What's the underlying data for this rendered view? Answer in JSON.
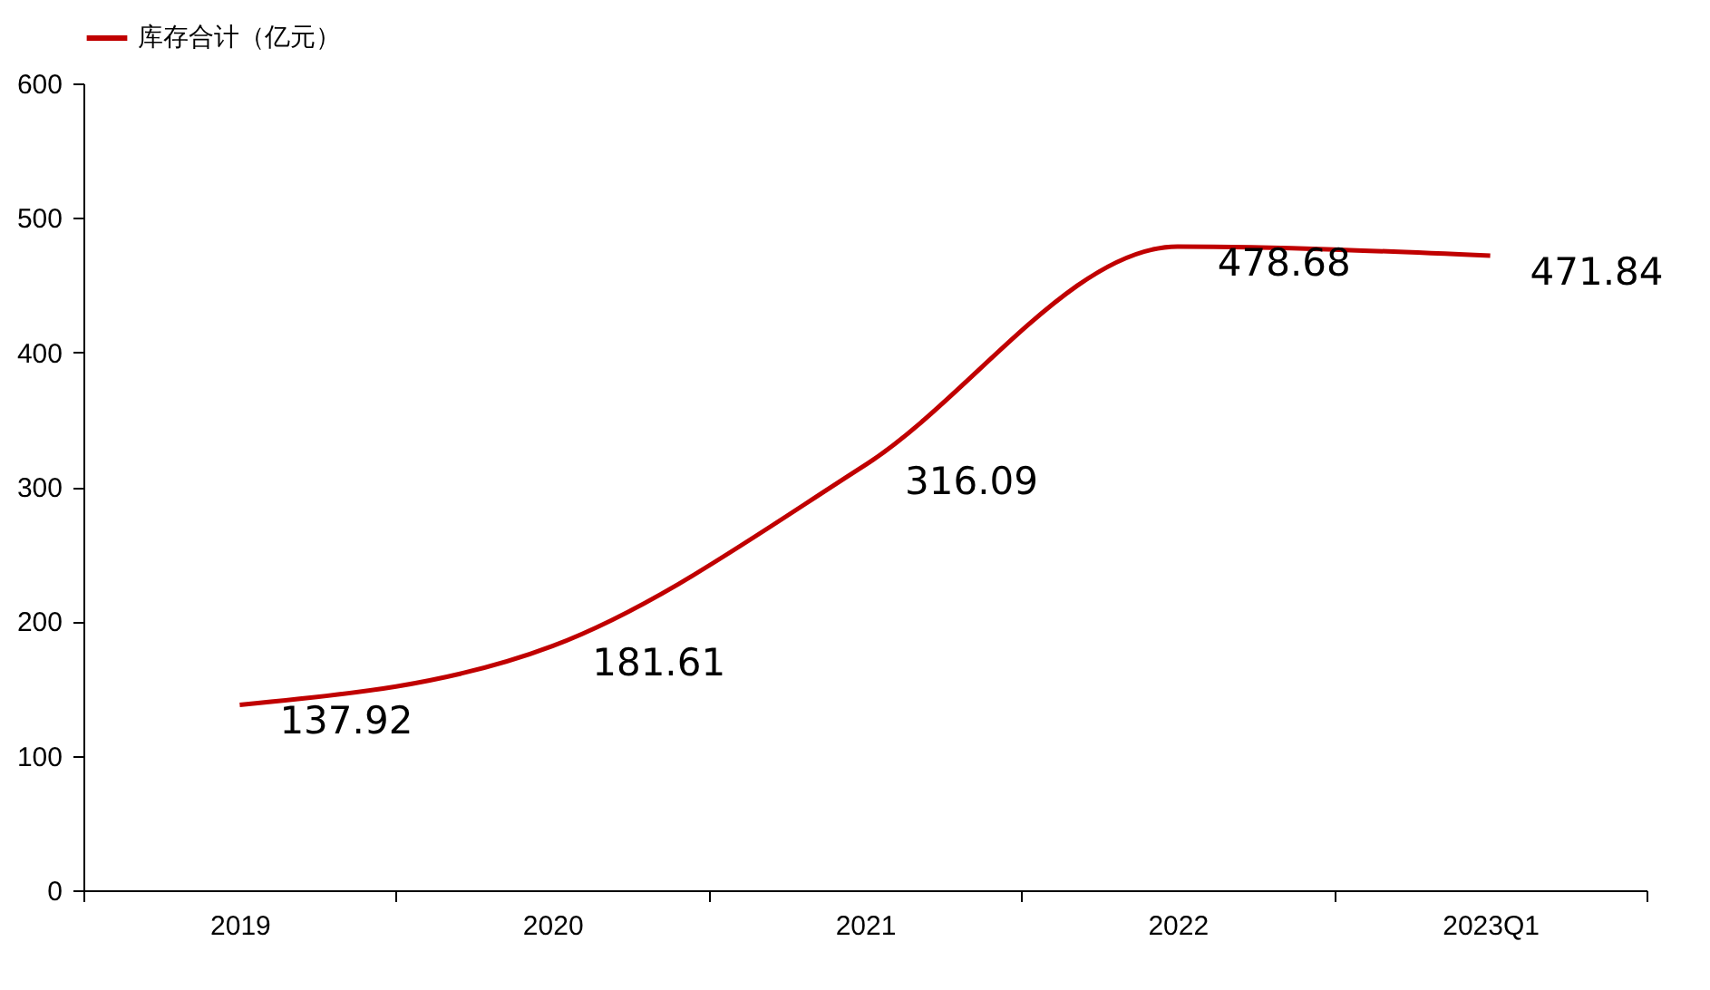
{
  "chart_data": {
    "type": "line",
    "categories": [
      "2019",
      "2020",
      "2021",
      "2022",
      "2023Q1"
    ],
    "series": [
      {
        "name": "库存合计（亿元）",
        "color": "#c00000",
        "values": [
          137.92,
          181.61,
          316.09,
          478.68,
          471.84
        ]
      }
    ],
    "ylim": [
      0,
      600
    ],
    "yticks": [
      0,
      100,
      200,
      300,
      400,
      500,
      600
    ],
    "grid": false,
    "legend": "top",
    "data_labels": true,
    "marker": "none",
    "line_style": "solid"
  }
}
